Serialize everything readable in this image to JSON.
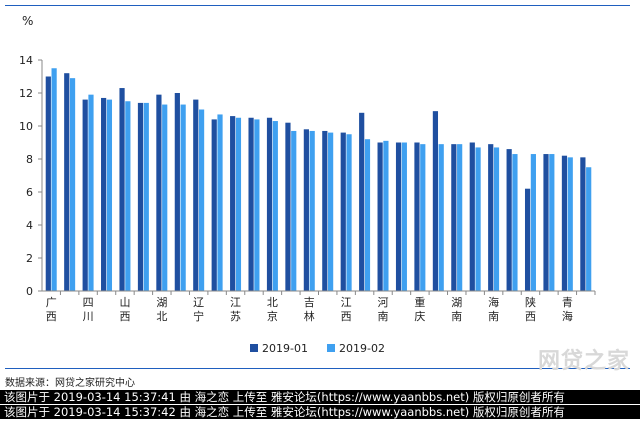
{
  "chart_data": {
    "type": "bar",
    "ylabel": "%",
    "ylim": [
      0,
      14
    ],
    "yticks": [
      0,
      2,
      4,
      6,
      8,
      10,
      12,
      14
    ],
    "categories": [
      "广西",
      "",
      "四川",
      "",
      "山西",
      "",
      "湖北",
      "",
      "辽宁",
      "",
      "江苏",
      "",
      "北京",
      "",
      "吉林",
      "",
      "江西",
      "",
      "河南",
      "",
      "重庆",
      "",
      "湖南",
      "",
      "海南",
      "",
      "陕西",
      "",
      "青海",
      ""
    ],
    "category_labels": [
      [
        "广",
        "西"
      ],
      [],
      [
        "四",
        "川"
      ],
      [],
      [
        "山",
        "西"
      ],
      [],
      [
        "湖",
        "北"
      ],
      [],
      [
        "辽",
        "宁"
      ],
      [],
      [
        "江",
        "苏"
      ],
      [],
      [
        "北",
        "京"
      ],
      [],
      [
        "吉",
        "林"
      ],
      [],
      [
        "江",
        "西"
      ],
      [],
      [
        "河",
        "南"
      ],
      [],
      [
        "重",
        "庆"
      ],
      [],
      [
        "湖",
        "南"
      ],
      [],
      [
        "海",
        "南"
      ],
      [],
      [
        "陕",
        "西"
      ],
      [],
      [
        "青",
        "海"
      ],
      []
    ],
    "series": [
      {
        "name": "2019-01",
        "color": "#1f4fa0",
        "values": [
          13.0,
          13.2,
          11.6,
          11.7,
          12.3,
          11.4,
          11.9,
          12.0,
          11.6,
          10.4,
          10.6,
          10.5,
          10.5,
          10.2,
          9.8,
          9.7,
          9.6,
          10.8,
          9.0,
          9.0,
          9.0,
          10.9,
          8.9,
          9.0,
          8.9,
          8.6,
          6.2,
          8.3,
          8.2,
          8.1
        ]
      },
      {
        "name": "2019-02",
        "color": "#3fa0f0",
        "values": [
          13.5,
          12.9,
          11.9,
          11.6,
          11.5,
          11.4,
          11.3,
          11.3,
          11.0,
          10.7,
          10.5,
          10.4,
          10.3,
          9.7,
          9.7,
          9.6,
          9.5,
          9.2,
          9.1,
          9.0,
          8.9,
          8.9,
          8.9,
          8.7,
          8.7,
          8.3,
          8.3,
          8.3,
          8.1,
          7.5
        ]
      }
    ],
    "legend_position": "bottom-center",
    "grid": false
  },
  "source_text": "数据来源：网贷之家研究中心",
  "watermark_text": "网贷之家",
  "footer": [
    "该图片于 2019-03-14 15:37:41 由 海之恋 上传至 雅安论坛(https://www.yaanbbs.net) 版权归原创者所有",
    "该图片于 2019-03-14 15:37:42 由 海之恋 上传至 雅安论坛(https://www.yaanbbs.net) 版权归原创者所有"
  ]
}
